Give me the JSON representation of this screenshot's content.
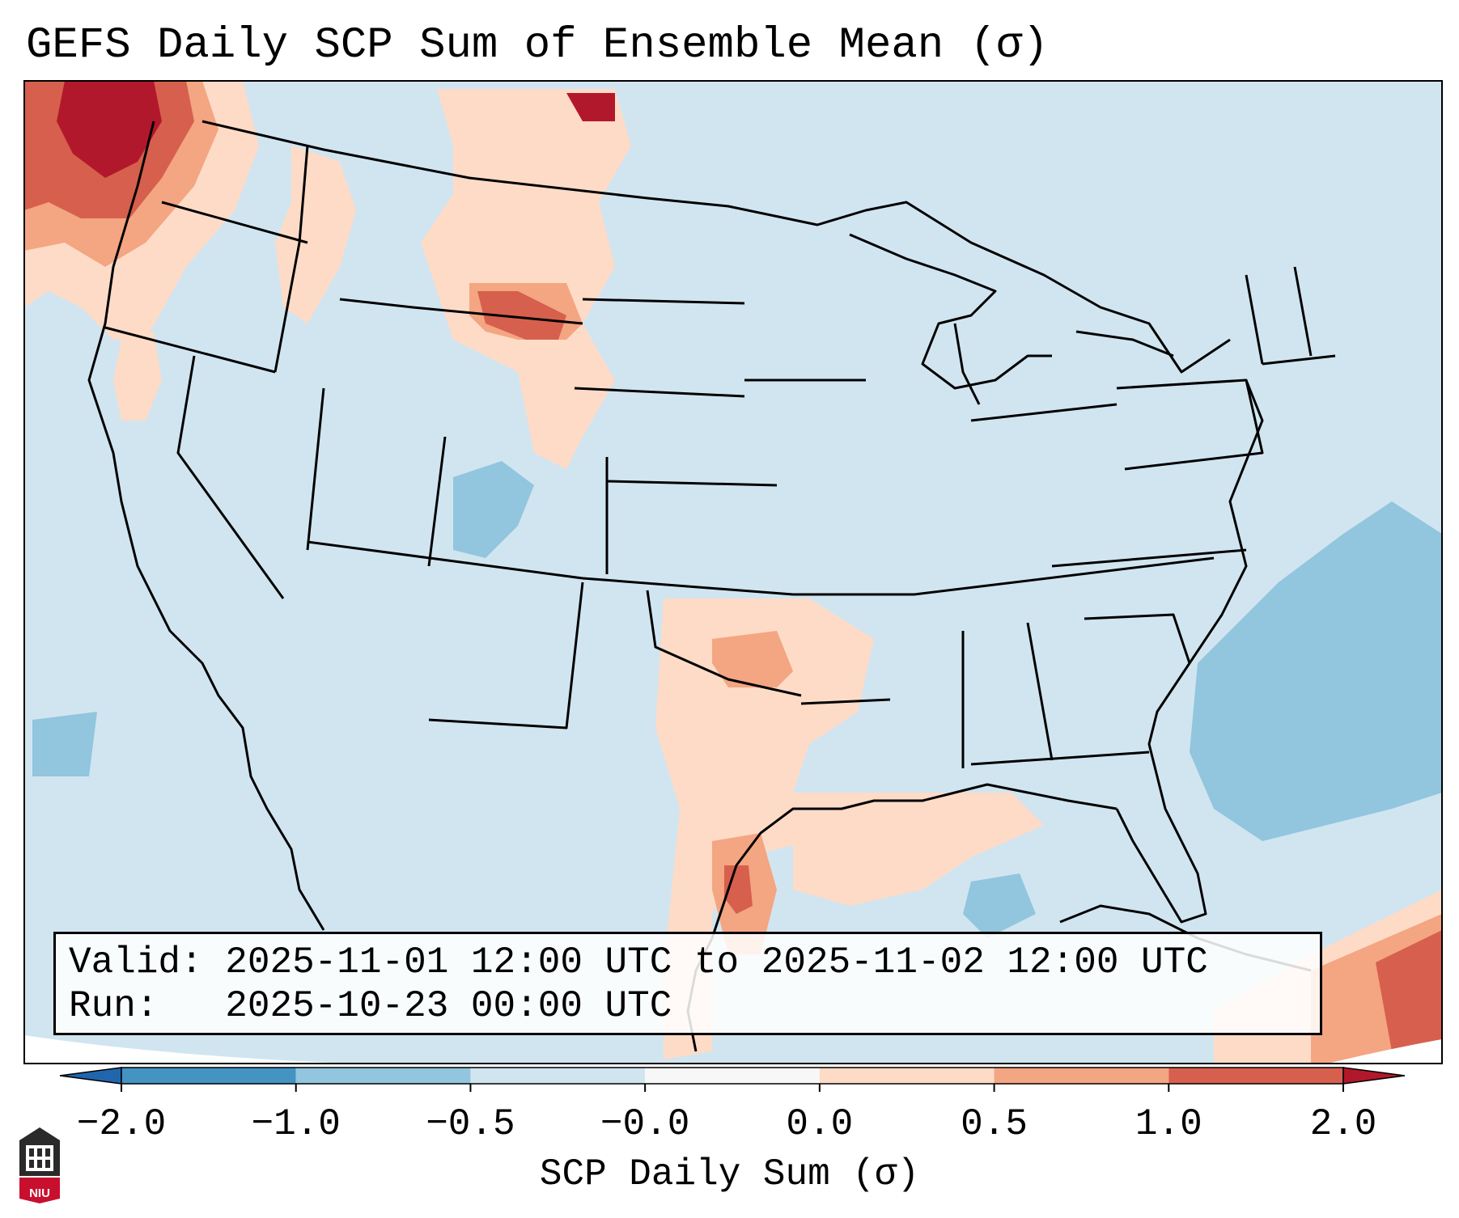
{
  "title": "GEFS Daily SCP Sum of Ensemble Mean (σ)",
  "info": {
    "valid_label": "Valid:",
    "valid_value": "2025-11-01 12:00 UTC to 2025-11-02 12:00 UTC",
    "run_label": "Run:",
    "run_value": "2025-10-23 00:00 UTC"
  },
  "colorbar": {
    "label": "SCP Daily Sum (σ)",
    "ticks": [
      "−2.0",
      "−1.0",
      "−0.5",
      "−0.0",
      "0.0",
      "0.5",
      "1.0",
      "2.0"
    ],
    "bins": [
      {
        "range": "below -2.0",
        "color": "#2166ac"
      },
      {
        "range": "-2.0 to -1.0",
        "color": "#4393c3"
      },
      {
        "range": "-1.0 to -0.5",
        "color": "#92c5de"
      },
      {
        "range": "-0.5 to -0.0",
        "color": "#d1e5f0"
      },
      {
        "range": "-0.0 to 0.0",
        "color": "#f7f7f7"
      },
      {
        "range": "0.0 to 0.5",
        "color": "#fddbc7"
      },
      {
        "range": "0.5 to 1.0",
        "color": "#f4a582"
      },
      {
        "range": "1.0 to 2.0",
        "color": "#d6604d"
      },
      {
        "range": "above 2.0",
        "color": "#b2182b"
      }
    ]
  },
  "logo": {
    "text": "NIU"
  }
}
